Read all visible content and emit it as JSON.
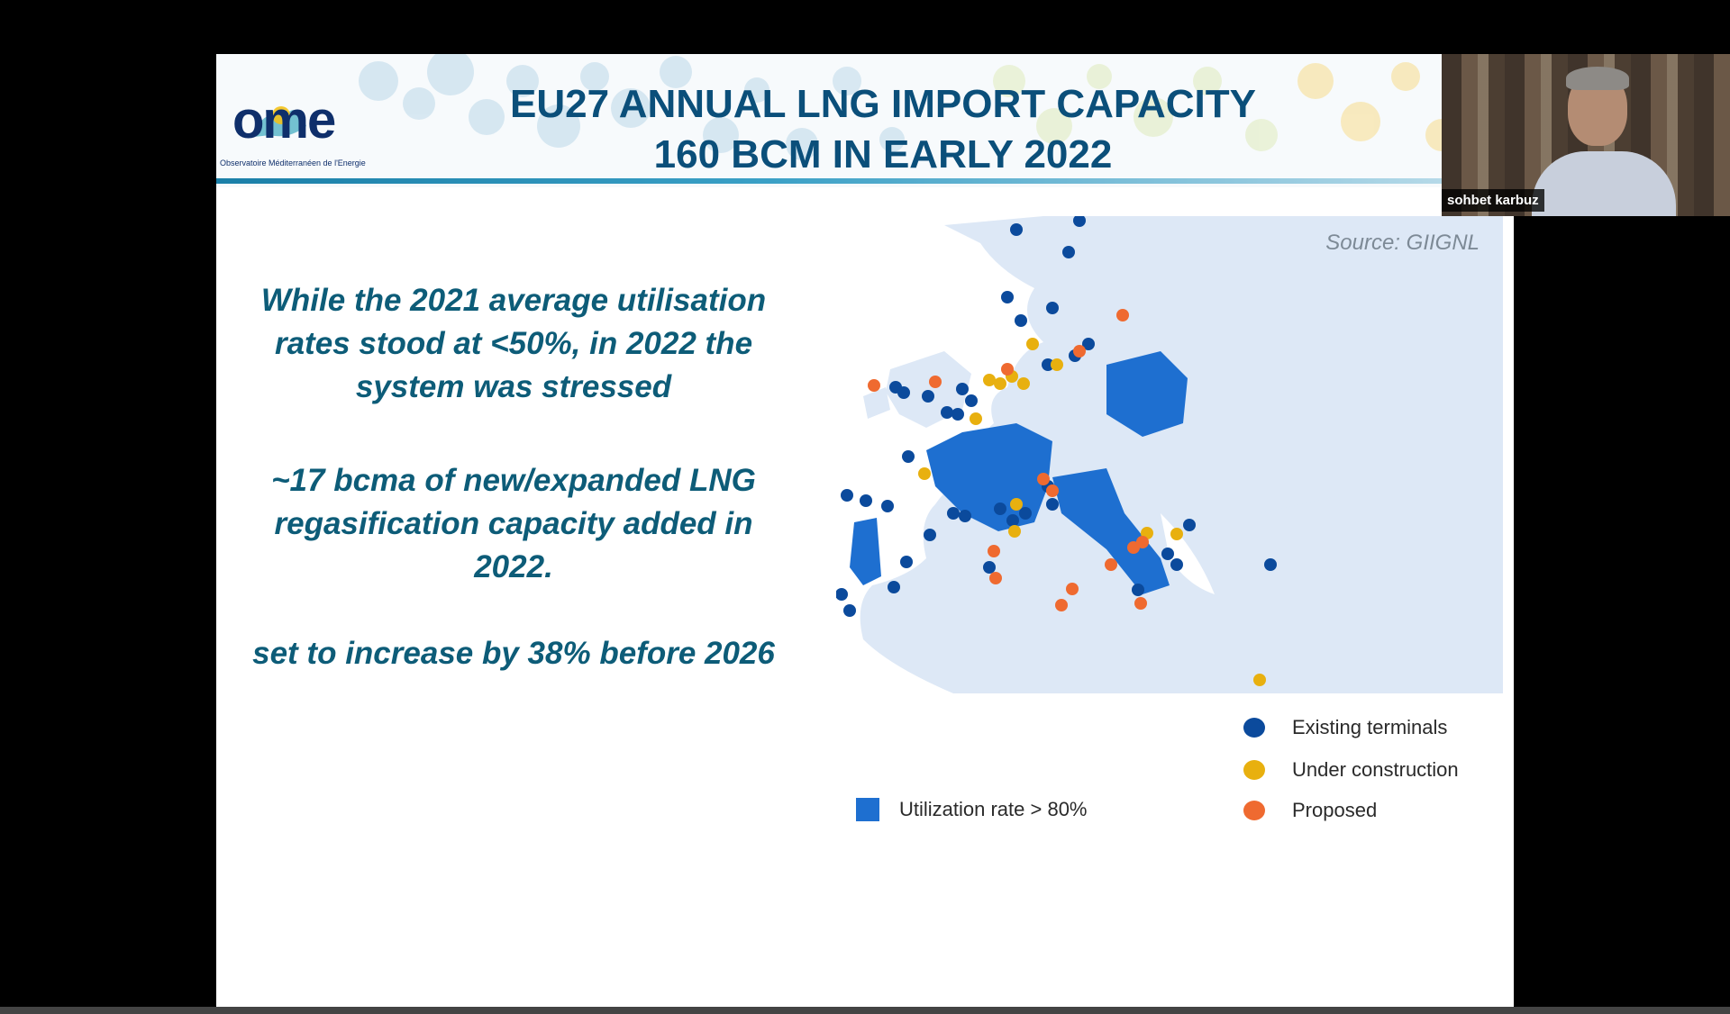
{
  "slide": {
    "logo": {
      "text": "ome",
      "subtitle": "Observatoire Méditerranéen de l'Energie"
    },
    "title_line1": "EU27 ANNUAL LNG IMPORT CAPACITY",
    "title_line2": "160 BCM IN EARLY 2022",
    "paragraphs": [
      "While the 2021 average utilisation rates stood at <50%, in 2022 the system was stressed",
      "~17 bcma of new/expanded LNG regasification capacity added in 2022.",
      "set to increase by 38% before 2026"
    ],
    "map": {
      "source": "Source: GIIGNL",
      "legend": {
        "existing": "Existing terminals",
        "under_construction": "Under construction",
        "proposed": "Proposed",
        "utilization": "Utilization rate > 80%"
      },
      "colors": {
        "existing": "#0b4a9c",
        "under_construction": "#e8b00f",
        "proposed": "#ef6a30",
        "utilization": "#1e6fd0",
        "land": "#dde8f6"
      }
    }
  },
  "video": {
    "participant_name": "sohbet karbuz"
  }
}
